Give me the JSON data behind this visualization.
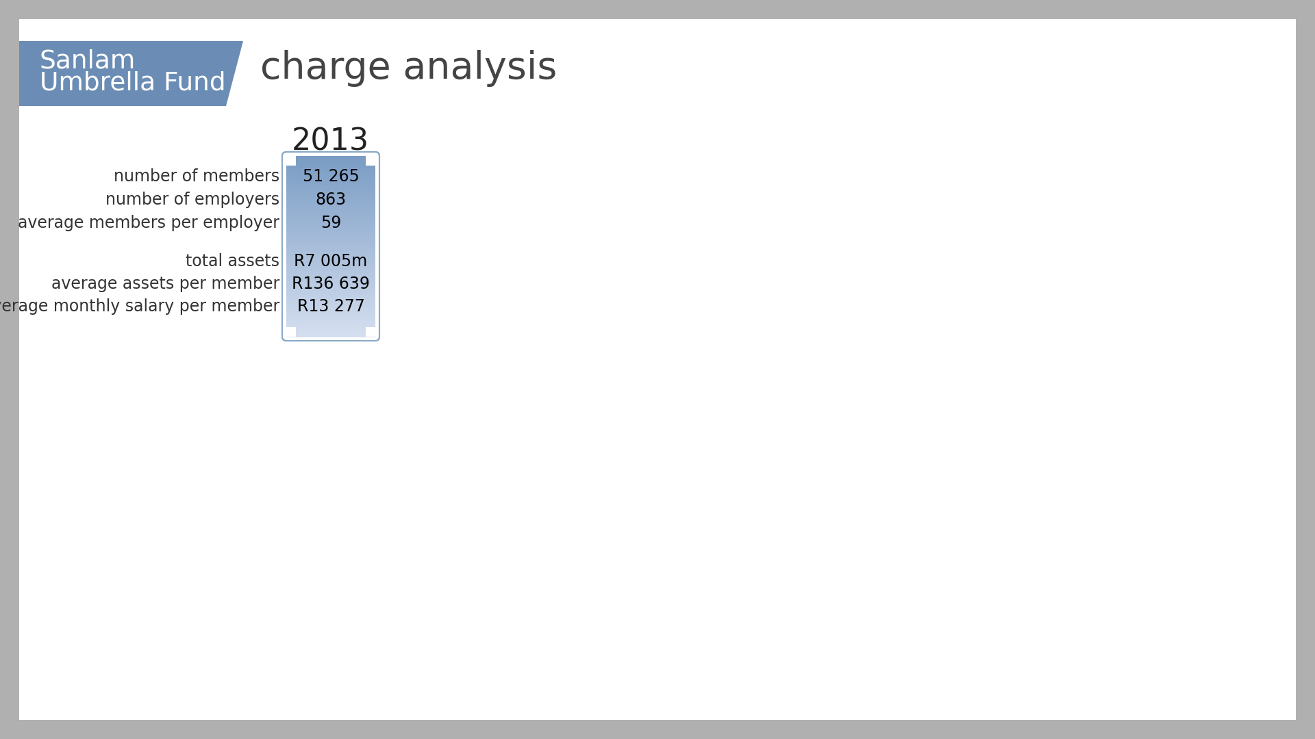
{
  "title_line1": "Sanlam",
  "title_line2": "Umbrella Fund",
  "subtitle": "charge analysis",
  "header_bg_color": "#6B8DB5",
  "header_text_color": "#FFFFFF",
  "year": "2013",
  "row_labels": [
    "number of members",
    "number of employers",
    "average members per employer",
    "",
    "total assets",
    "average assets per member",
    "average monthly salary per member"
  ],
  "col_values": [
    "51 265",
    "863",
    "59",
    "",
    "R7 005m",
    "R136 639",
    "R13 277"
  ],
  "bg_color": "#B0B0B0",
  "white_area_color": "#FFFFFF",
  "box_color_top": "#7A9CC4",
  "box_color_bottom": "#C8D5E8",
  "box_border_color": "#8AAAC8",
  "box_text_color": "#000000",
  "label_text_color": "#333333",
  "year_text_color": "#222222",
  "subtitle_color": "#444444"
}
